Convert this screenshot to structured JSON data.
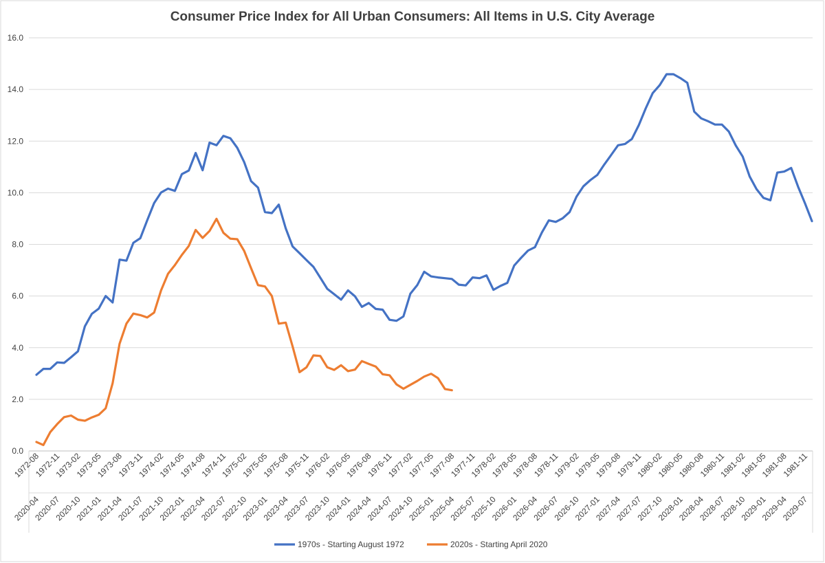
{
  "chart_data": {
    "type": "line",
    "title": "Consumer Price Index for All Urban Consumers: All Items in U.S. City Average",
    "ylim": [
      0,
      16
    ],
    "yticks": [
      "0.0",
      "2.0",
      "4.0",
      "6.0",
      "8.0",
      "10.0",
      "12.0",
      "14.0",
      "16.0"
    ],
    "grid": true,
    "legend_position": "bottom",
    "x_label_rows": [
      [
        "1972-08",
        "1972-11",
        "1973-02",
        "1973-05",
        "1973-08",
        "1973-11",
        "1974-02",
        "1974-05",
        "1974-08",
        "1974-11",
        "1975-02",
        "1975-05",
        "1975-08",
        "1975-11",
        "1976-02",
        "1976-05",
        "1976-08",
        "1976-11",
        "1977-02",
        "1977-05",
        "1977-08",
        "1977-11",
        "1978-02",
        "1978-05",
        "1978-08",
        "1978-11",
        "1979-02",
        "1979-05",
        "1979-08",
        "1979-11",
        "1980-02",
        "1980-05",
        "1980-08",
        "1980-11",
        "1981-02",
        "1981-05",
        "1981-08",
        "1981-11"
      ],
      [
        "2020-04",
        "2020-07",
        "2020-10",
        "2021-01",
        "2021-04",
        "2021-07",
        "2021-10",
        "2022-01",
        "2022-04",
        "2022-07",
        "2022-10",
        "2023-01",
        "2023-04",
        "2023-07",
        "2023-10",
        "2024-01",
        "2024-04",
        "2024-07",
        "2024-10",
        "2025-01",
        "2025-04",
        "2025-07",
        "2025-10",
        "2026-01",
        "2026-04",
        "2026-07",
        "2026-10",
        "2027-01",
        "2027-04",
        "2027-07",
        "2027-10",
        "2028-01",
        "2028-04",
        "2028-07",
        "2028-10",
        "2029-01",
        "2029-04",
        "2029-07"
      ]
    ],
    "series": [
      {
        "name": "1970s - Starting August 1972",
        "color": "#4472C4",
        "values": [
          2.95,
          3.18,
          3.18,
          3.43,
          3.41,
          3.63,
          3.86,
          4.83,
          5.31,
          5.51,
          6.0,
          5.75,
          7.41,
          7.37,
          8.06,
          8.24,
          8.93,
          9.6,
          10.01,
          10.16,
          10.07,
          10.72,
          10.86,
          11.54,
          10.87,
          11.94,
          11.84,
          12.2,
          12.11,
          11.74,
          11.19,
          10.45,
          10.2,
          9.25,
          9.21,
          9.54,
          8.62,
          7.92,
          7.66,
          7.39,
          7.13,
          6.71,
          6.28,
          6.07,
          5.86,
          6.22,
          5.99,
          5.58,
          5.73,
          5.5,
          5.47,
          5.08,
          5.04,
          5.21,
          6.09,
          6.42,
          6.94,
          6.76,
          6.72,
          6.69,
          6.66,
          6.44,
          6.41,
          6.72,
          6.69,
          6.8,
          6.24,
          6.39,
          6.51,
          7.18,
          7.48,
          7.76,
          7.89,
          8.46,
          8.93,
          8.87,
          9.01,
          9.25,
          9.85,
          10.25,
          10.49,
          10.69,
          11.09,
          11.46,
          11.84,
          11.89,
          12.08,
          12.62,
          13.27,
          13.86,
          14.16,
          14.59,
          14.59,
          14.44,
          14.26,
          13.14,
          12.88,
          12.77,
          12.64,
          12.64,
          12.37,
          11.83,
          11.4,
          10.63,
          10.14,
          9.8,
          9.71,
          10.78,
          10.82,
          10.96,
          10.23,
          9.59,
          8.9
        ]
      },
      {
        "name": "2020s - Starting April 2020",
        "color": "#ED7D31",
        "values": [
          0.35,
          0.23,
          0.73,
          1.04,
          1.31,
          1.37,
          1.21,
          1.17,
          1.3,
          1.4,
          1.65,
          2.62,
          4.15,
          4.93,
          5.32,
          5.26,
          5.17,
          5.36,
          6.22,
          6.86,
          7.2,
          7.59,
          7.94,
          8.56,
          8.25,
          8.52,
          8.99,
          8.45,
          8.22,
          8.2,
          7.75,
          7.08,
          6.42,
          6.37,
          6.0,
          4.93,
          4.97,
          4.05,
          3.05,
          3.24,
          3.7,
          3.68,
          3.24,
          3.14,
          3.32,
          3.09,
          3.15,
          3.48,
          3.37,
          3.27,
          2.97,
          2.93,
          2.58,
          2.41,
          2.56,
          2.71,
          2.88,
          2.99,
          2.82,
          2.4,
          2.35
        ]
      }
    ]
  }
}
